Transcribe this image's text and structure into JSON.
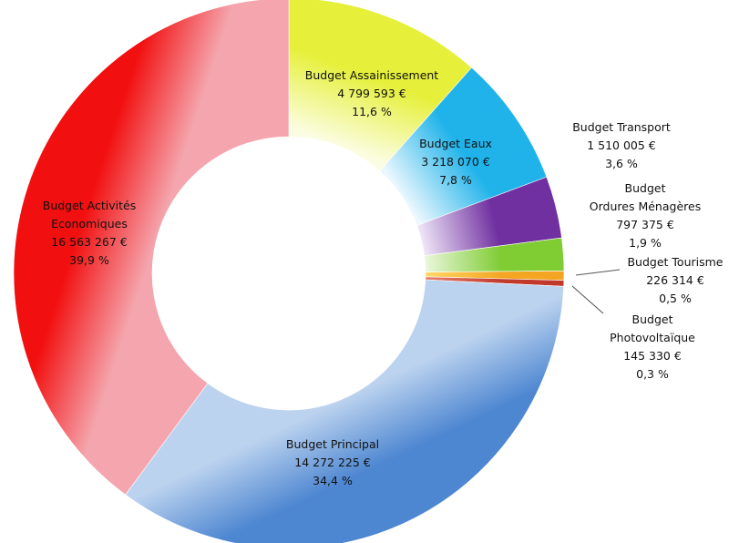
{
  "chart_data": {
    "type": "pie",
    "variant": "donut",
    "title": "",
    "slices": [
      {
        "name": "Budget Assainissement",
        "lines": [
          "Budget  Assainissement",
          "4 799 593 €",
          "11,6 %"
        ],
        "value": 4799593,
        "percent": 11.6,
        "color": "#e6f03a",
        "color_light": "#fbfde2"
      },
      {
        "name": "Budget Eaux",
        "lines": [
          "Budget  Eaux",
          "3 218 070 €",
          "7,8 %"
        ],
        "value": 3218070,
        "percent": 7.8,
        "color": "#1fb3ea",
        "color_light": "#ecf8fe"
      },
      {
        "name": "Budget Transport",
        "lines": [
          "Budget  Transport",
          "1 510 005 €",
          "3,6 %"
        ],
        "value": 1510005,
        "percent": 3.6,
        "color": "#7030a0",
        "color_light": "#efe6f7"
      },
      {
        "name": "Budget Ordures Ménagères",
        "lines": [
          "Budget",
          "Ordures Ménagères",
          "797 375 €",
          "1,9 %"
        ],
        "value": 797375,
        "percent": 1.9,
        "color": "#7fcc33",
        "color_light": "#eaf7dc"
      },
      {
        "name": "Budget Tourisme",
        "lines": [
          "Budget  Tourisme",
          "226 314 €",
          "0,5 %"
        ],
        "value": 226314,
        "percent": 0.5,
        "color": "#f4a522",
        "color_light": "#ffd766"
      },
      {
        "name": "Budget Photovoltaïque",
        "lines": [
          "Budget",
          "Photovoltaïque",
          "145 330 €",
          "0,3 %"
        ],
        "value": 145330,
        "percent": 0.3,
        "color": "#c0392b",
        "color_light": "#e8826f"
      },
      {
        "name": "Budget Principal",
        "lines": [
          "Budget  Principal",
          "14 272 225 €",
          "34,4 %"
        ],
        "value": 14272225,
        "percent": 34.4,
        "color": "#4d86d1",
        "color_light": "#bcd3ef"
      },
      {
        "name": "Budget Activités Economiques",
        "lines": [
          "Budget Activités",
          "Economiques",
          "16 563 267 €",
          "39,9 %"
        ],
        "value": 16563267,
        "percent": 39.9,
        "color": "#f20f0f",
        "color_light": "#f4a5ad"
      }
    ]
  }
}
